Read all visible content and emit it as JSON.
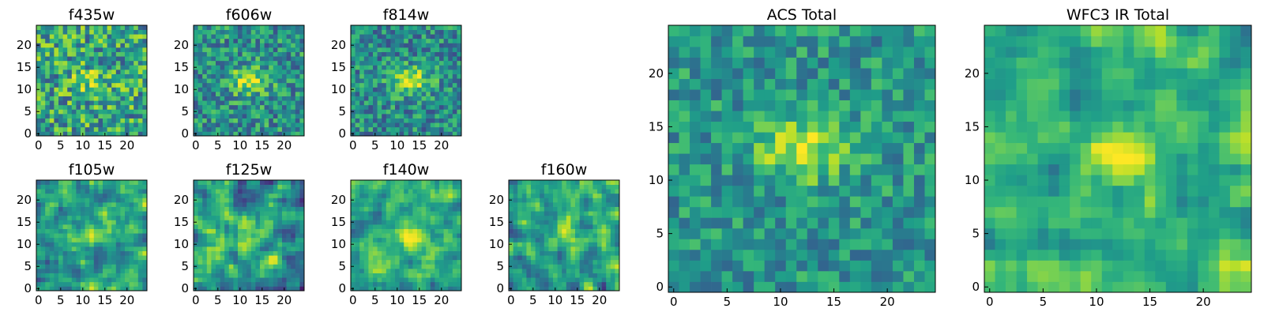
{
  "chart_data": [
    {
      "id": "f435w",
      "type": "heatmap",
      "title": "f435w",
      "colormap": "viridis",
      "grid_size": 25,
      "peak": [
        12,
        12
      ],
      "peak_strength": 0.2,
      "background": 0.58,
      "noise": 0.32,
      "smooth": false,
      "seed": 11,
      "xticks": [
        "0",
        "5",
        "10",
        "15",
        "20"
      ],
      "yticks": [
        "0",
        "5",
        "10",
        "15",
        "20"
      ],
      "xlim": [
        0,
        24
      ],
      "ylim": [
        0,
        24
      ]
    },
    {
      "id": "f606w",
      "type": "heatmap",
      "title": "f606w",
      "colormap": "viridis",
      "grid_size": 25,
      "peak": [
        12,
        12
      ],
      "peak_strength": 0.45,
      "background": 0.5,
      "noise": 0.26,
      "smooth": false,
      "seed": 23,
      "xticks": [
        "0",
        "5",
        "10",
        "15",
        "20"
      ],
      "yticks": [
        "0",
        "5",
        "10",
        "15",
        "20"
      ],
      "xlim": [
        0,
        24
      ],
      "ylim": [
        0,
        24
      ]
    },
    {
      "id": "f814w",
      "type": "heatmap",
      "title": "f814w",
      "colormap": "viridis",
      "grid_size": 25,
      "peak": [
        13,
        12
      ],
      "peak_strength": 0.5,
      "background": 0.48,
      "noise": 0.25,
      "smooth": false,
      "seed": 37,
      "xticks": [
        "0",
        "5",
        "10",
        "15",
        "20"
      ],
      "yticks": [
        "0",
        "5",
        "10",
        "15",
        "20"
      ],
      "xlim": [
        0,
        24
      ],
      "ylim": [
        0,
        24
      ]
    },
    {
      "id": "f105w",
      "type": "heatmap",
      "title": "f105w",
      "colormap": "viridis",
      "grid_size": 25,
      "peak": [
        13,
        13
      ],
      "peak_strength": 0.3,
      "background": 0.55,
      "noise": 0.3,
      "smooth": true,
      "seed": 41,
      "xticks": [
        "0",
        "5",
        "10",
        "15",
        "20"
      ],
      "yticks": [
        "0",
        "5",
        "10",
        "15",
        "20"
      ],
      "xlim": [
        0,
        24
      ],
      "ylim": [
        0,
        24
      ]
    },
    {
      "id": "f125w",
      "type": "heatmap",
      "title": "f125w",
      "colormap": "viridis",
      "grid_size": 25,
      "peak": [
        12,
        11
      ],
      "peak_strength": 0.25,
      "background": 0.55,
      "noise": 0.32,
      "smooth": true,
      "seed": 53,
      "xticks": [
        "0",
        "5",
        "10",
        "15",
        "20"
      ],
      "yticks": [
        "0",
        "5",
        "10",
        "15",
        "20"
      ],
      "xlim": [
        0,
        24
      ],
      "ylim": [
        0,
        24
      ]
    },
    {
      "id": "f140w",
      "type": "heatmap",
      "title": "f140w",
      "colormap": "viridis",
      "grid_size": 25,
      "peak": [
        13,
        12
      ],
      "peak_strength": 0.3,
      "background": 0.62,
      "noise": 0.25,
      "smooth": true,
      "seed": 67,
      "xticks": [
        "0",
        "5",
        "10",
        "15",
        "20"
      ],
      "yticks": [
        "0",
        "5",
        "10",
        "15",
        "20"
      ],
      "xlim": [
        0,
        24
      ],
      "ylim": [
        0,
        24
      ]
    },
    {
      "id": "f160w",
      "type": "heatmap",
      "title": "f160w",
      "colormap": "viridis",
      "grid_size": 25,
      "peak": [
        13,
        13
      ],
      "peak_strength": 0.3,
      "background": 0.58,
      "noise": 0.3,
      "smooth": true,
      "seed": 79,
      "xticks": [
        "0",
        "5",
        "10",
        "15",
        "20"
      ],
      "yticks": [
        "0",
        "5",
        "10",
        "15",
        "20"
      ],
      "xlim": [
        0,
        24
      ],
      "ylim": [
        0,
        24
      ]
    },
    {
      "id": "acs-total",
      "type": "heatmap",
      "title": "ACS Total",
      "colormap": "viridis",
      "grid_size": 25,
      "peak": [
        12,
        13
      ],
      "peak_strength": 0.42,
      "background": 0.52,
      "noise": 0.2,
      "smooth": false,
      "seed": 91,
      "xticks": [
        "0",
        "5",
        "10",
        "15",
        "20"
      ],
      "yticks": [
        "0",
        "5",
        "10",
        "15",
        "20"
      ],
      "xlim": [
        0,
        24
      ],
      "ylim": [
        0,
        24
      ]
    },
    {
      "id": "wfc3-ir-total",
      "type": "heatmap",
      "title": "WFC3 IR Total",
      "colormap": "viridis",
      "grid_size": 25,
      "peak": [
        12,
        12
      ],
      "peak_strength": 0.35,
      "background": 0.6,
      "noise": 0.22,
      "smooth": true,
      "seed": 103,
      "xticks": [
        "0",
        "5",
        "10",
        "15",
        "20"
      ],
      "yticks": [
        "0",
        "5",
        "10",
        "15",
        "20"
      ],
      "xlim": [
        0,
        24
      ],
      "ylim": [
        0,
        24
      ]
    }
  ]
}
